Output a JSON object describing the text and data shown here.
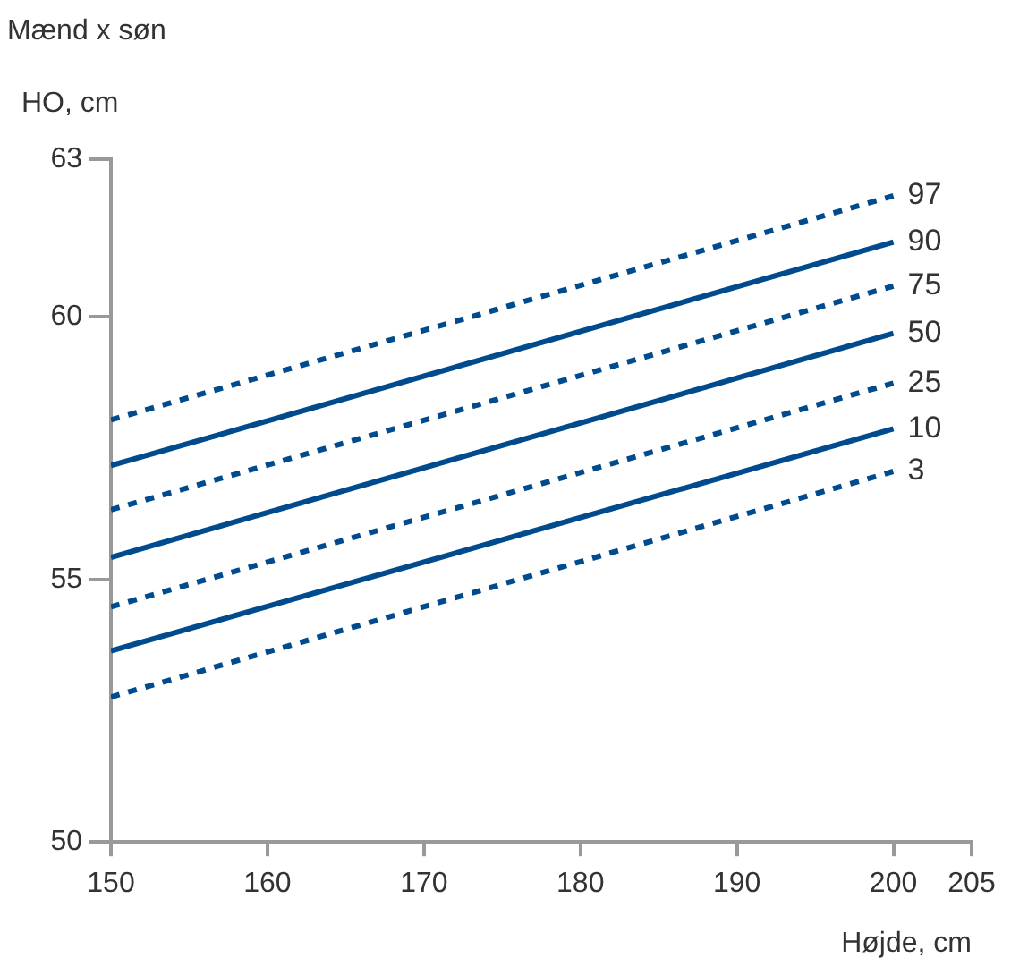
{
  "chart_data": {
    "type": "line",
    "title": "Mænd x søn",
    "ylabel": "HO, cm",
    "xlabel": "Højde, cm",
    "x": [
      150,
      200
    ],
    "xlim": [
      150,
      205
    ],
    "xticks": [
      150,
      160,
      170,
      180,
      190,
      200,
      205
    ],
    "ylim": [
      50,
      63
    ],
    "yticks": [
      50,
      55,
      60,
      63
    ],
    "grid": false,
    "legend": false,
    "marker": "none",
    "series": [
      {
        "name": "97",
        "color": "#004b8d",
        "line_style": "dashed",
        "values": [
          58.04,
          62.31
        ]
      },
      {
        "name": "90",
        "color": "#004b8d",
        "line_style": "solid",
        "values": [
          57.17,
          61.43
        ]
      },
      {
        "name": "75",
        "color": "#004b8d",
        "line_style": "dashed",
        "values": [
          56.33,
          60.59
        ]
      },
      {
        "name": "50",
        "color": "#004b8d",
        "line_style": "solid",
        "values": [
          55.42,
          59.69
        ]
      },
      {
        "name": "25",
        "color": "#004b8d",
        "line_style": "dashed",
        "values": [
          54.48,
          58.74
        ]
      },
      {
        "name": "10",
        "color": "#004b8d",
        "line_style": "solid",
        "values": [
          53.64,
          57.87
        ]
      },
      {
        "name": "3",
        "color": "#004b8d",
        "line_style": "dashed",
        "values": [
          52.76,
          57.06
        ]
      }
    ]
  }
}
